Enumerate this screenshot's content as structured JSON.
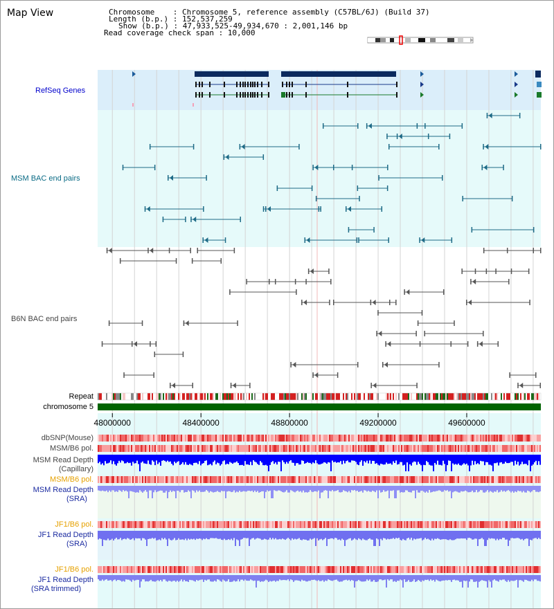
{
  "view": {
    "title": "Map View",
    "info_lines": [
      "Chromosome    : Chromosome 5, reference assembly (C57BL/6J) (Build 37)",
      "Length (b.p.) : 152,537,259",
      "Show (b.p.) : 47,933,525-49,934,670 : 2,001,146 bp",
      "Read coverage check span : 10,000"
    ]
  },
  "tracks": {
    "refseq": "RefSeq Genes",
    "msm_bac": "MSM BAC end pairs",
    "b6n_bac": "B6N BAC end pairs",
    "repeat": "Repeat",
    "chromosome": "chromosome 5",
    "dbsnp": "dbSNP(Mouse)",
    "msm_b6_pol_1": "MSM/B6 pol.",
    "msm_read_depth_cap_1": "MSM Read Depth",
    "msm_read_depth_cap_2": "(Capillary)",
    "msm_b6_pol_2": "MSM/B6 pol.",
    "msm_read_depth_sra_1": "MSM Read Depth",
    "msm_read_depth_sra_2": "(SRA)",
    "jf1_b6_pol_1": "JF1/B6 pol.",
    "jf1_read_depth_sra_1": "JF1 Read Depth",
    "jf1_read_depth_sra_2": "(SRA)",
    "jf1_b6_pol_2": "JF1/B6 pol.",
    "jf1_read_depth_trim_1": "JF1 Read Depth",
    "jf1_read_depth_trim_2": "(SRA trimmed)"
  },
  "axis": {
    "ticks": [
      "48000000",
      "48400000",
      "48800000",
      "49200000",
      "49600000"
    ],
    "tick_values": [
      48000000,
      48400000,
      48800000,
      49200000,
      49600000
    ],
    "range": [
      47933525,
      49934670
    ]
  },
  "colors": {
    "refseq_bg": "#dbeefa",
    "msm_bg": "#e6fafa",
    "gene_dark": "#0b2a5e",
    "msm_line": "#1d6a86",
    "b6n_line": "#555555",
    "chromosome": "#006400",
    "read_depth_cap": "#0000ff",
    "read_depth_sra": "#8f8ff5",
    "pol": "#f06060"
  }
}
